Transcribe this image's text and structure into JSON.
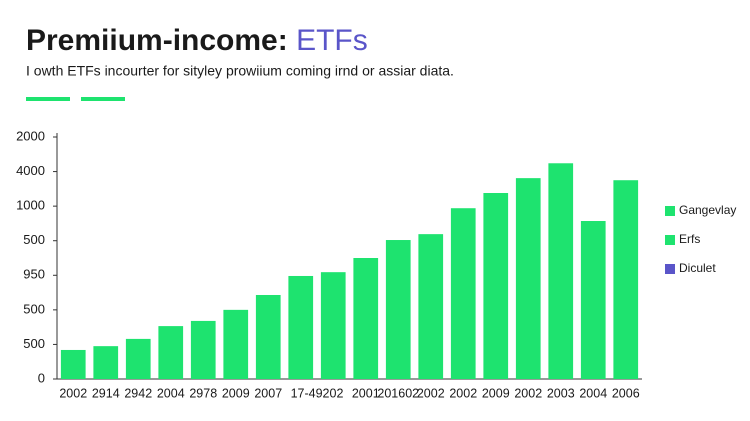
{
  "chart_data": {
    "type": "bar",
    "title": "Premiium-income: ",
    "title_highlight": "ETFs",
    "subtitle": "I owth ETFs incourter for sityley prowiium coming irnd or assiar diata.",
    "categories": [
      "2002",
      "2914",
      "2942",
      "2004",
      "2978",
      "2009",
      "2007",
      "17-49202",
      null,
      "2001",
      "201602",
      "2002",
      "2002",
      "2009",
      "2002",
      "2003",
      "2004",
      "2006"
    ],
    "values": [
      0.84,
      0.95,
      1.16,
      1.53,
      1.68,
      2.0,
      2.43,
      2.98,
      3.09,
      3.5,
      4.02,
      4.19,
      4.94,
      5.38,
      5.81,
      6.24,
      4.57,
      5.75
    ],
    "color": "#1ee36f",
    "ylim": [
      0,
      7
    ],
    "yticks": [
      {
        "value": 0,
        "label": "0"
      },
      {
        "value": 1,
        "label": "500"
      },
      {
        "value": 2,
        "label": "500"
      },
      {
        "value": 3,
        "label": "950"
      },
      {
        "value": 4,
        "label": "500"
      },
      {
        "value": 5,
        "label": "1000"
      },
      {
        "value": 6,
        "label": "4000"
      },
      {
        "value": 7,
        "label": "2000"
      }
    ],
    "legend": [
      {
        "name": "Gangevlay",
        "color": "#1ee36f"
      },
      {
        "name": "Erfs",
        "color": "#1ee36f"
      },
      {
        "name": "Diculet",
        "color": "#5a55c9"
      }
    ],
    "title_highlight_color": "#5a55c9"
  }
}
